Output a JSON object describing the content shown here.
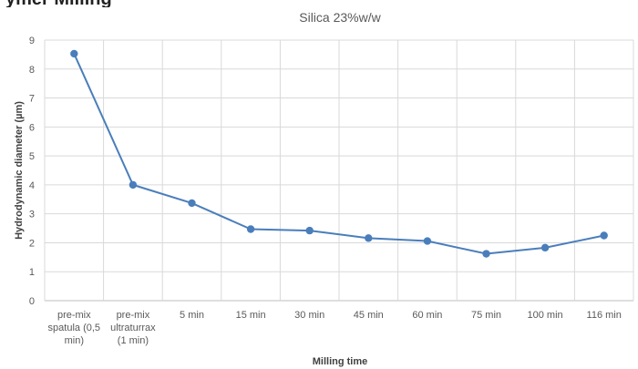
{
  "header_cut_text": "ymer Milling",
  "chart_data": {
    "type": "line",
    "title": "Silica 23%w/w",
    "xlabel": "Milling time",
    "ylabel": "Hydrodynamic diameter (µm)",
    "ylim": [
      0,
      9
    ],
    "yticks": [
      0,
      1,
      2,
      3,
      4,
      5,
      6,
      7,
      8,
      9
    ],
    "grid": true,
    "categories": [
      "pre-mix spatula (0,5 min)",
      "pre-mix ultraturrax (1 min)",
      "5 min",
      "15 min",
      "30 min",
      "45 min",
      "60 min",
      "75 min",
      "100 min",
      "116 min"
    ],
    "category_lines": [
      [
        "pre-mix",
        "spatula (0,5",
        "min)"
      ],
      [
        "pre-mix",
        "ultraturrax",
        "(1 min)"
      ],
      [
        "5 min"
      ],
      [
        "15 min"
      ],
      [
        "30 min"
      ],
      [
        "45 min"
      ],
      [
        "60 min"
      ],
      [
        "75 min"
      ],
      [
        "100 min"
      ],
      [
        "116 min"
      ]
    ],
    "series": [
      {
        "values": [
          8.53,
          4.0,
          3.37,
          2.47,
          2.42,
          2.16,
          2.06,
          1.62,
          1.83,
          2.25
        ],
        "color": "#4a7ebb"
      }
    ]
  }
}
